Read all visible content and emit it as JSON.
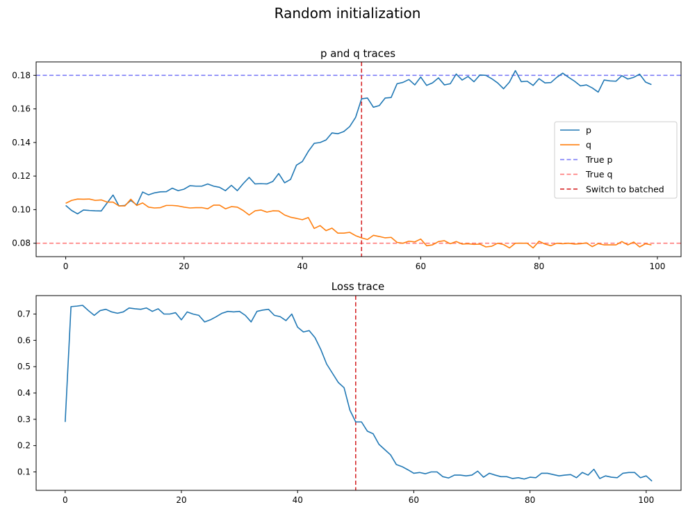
{
  "figure_title": "Random initialization",
  "chart_data": [
    {
      "type": "line",
      "title": "p and q traces",
      "xlabel": "",
      "ylabel": "",
      "xlim": [
        -5,
        104
      ],
      "ylim": [
        0.072,
        0.188
      ],
      "xticks": [
        0,
        20,
        40,
        60,
        80,
        100
      ],
      "yticks": [
        0.08,
        0.1,
        0.12,
        0.14,
        0.16,
        0.18
      ],
      "ytick_labels": [
        "0.08",
        "0.10",
        "0.12",
        "0.14",
        "0.16",
        "0.18"
      ],
      "grid": false,
      "legend_position": "center-right",
      "series": [
        {
          "name": "p",
          "color": "#1f77b4",
          "x_start": 0,
          "values": [
            0.1025,
            0.0995,
            0.0975,
            0.0998,
            0.0995,
            0.0993,
            0.0992,
            0.104,
            0.1087,
            0.1022,
            0.1025,
            0.1055,
            0.1028,
            0.1105,
            0.1088,
            0.11,
            0.1106,
            0.1107,
            0.1128,
            0.1113,
            0.1122,
            0.1143,
            0.114,
            0.114,
            0.1153,
            0.114,
            0.1133,
            0.1113,
            0.1145,
            0.1113,
            0.1155,
            0.1192,
            0.1153,
            0.1155,
            0.1153,
            0.1168,
            0.1215,
            0.116,
            0.118,
            0.1265,
            0.1287,
            0.1347,
            0.1395,
            0.14,
            0.1415,
            0.1457,
            0.1452,
            0.1465,
            0.1495,
            0.155,
            0.166,
            0.1665,
            0.161,
            0.162,
            0.1665,
            0.1668,
            0.175,
            0.1758,
            0.1775,
            0.1743,
            0.179,
            0.174,
            0.1755,
            0.1785,
            0.1743,
            0.175,
            0.1808,
            0.1772,
            0.1793,
            0.1762,
            0.1802,
            0.18,
            0.178,
            0.1755,
            0.172,
            0.176,
            0.1828,
            0.1762,
            0.1765,
            0.174,
            0.178,
            0.1755,
            0.1757,
            0.1788,
            0.1813,
            0.1788,
            0.1765,
            0.1737,
            0.1743,
            0.1725,
            0.17,
            0.1772,
            0.1767,
            0.1765,
            0.1798,
            0.1778,
            0.1788,
            0.1807,
            0.176,
            0.1745
          ]
        },
        {
          "name": "q",
          "color": "#ff7f0e",
          "x_start": 0,
          "values": [
            0.1038,
            0.1055,
            0.1063,
            0.1062,
            0.1063,
            0.1055,
            0.1058,
            0.1045,
            0.1045,
            0.1022,
            0.1022,
            0.1062,
            0.1025,
            0.104,
            0.1015,
            0.101,
            0.1012,
            0.1025,
            0.1025,
            0.1022,
            0.1015,
            0.101,
            0.1012,
            0.1012,
            0.1005,
            0.1027,
            0.1027,
            0.1005,
            0.1018,
            0.1015,
            0.0995,
            0.0968,
            0.0993,
            0.0998,
            0.0985,
            0.0993,
            0.0992,
            0.0968,
            0.0955,
            0.0948,
            0.094,
            0.0953,
            0.0888,
            0.0905,
            0.0875,
            0.089,
            0.086,
            0.086,
            0.0865,
            0.0845,
            0.0832,
            0.0822,
            0.0847,
            0.084,
            0.0832,
            0.0835,
            0.0805,
            0.08,
            0.0812,
            0.0808,
            0.0825,
            0.0785,
            0.079,
            0.081,
            0.0815,
            0.0797,
            0.081,
            0.0795,
            0.0797,
            0.0793,
            0.0795,
            0.0778,
            0.0782,
            0.08,
            0.0792,
            0.0772,
            0.08,
            0.08,
            0.08,
            0.0772,
            0.0812,
            0.0795,
            0.0785,
            0.08,
            0.0797,
            0.08,
            0.0795,
            0.0797,
            0.0802,
            0.078,
            0.0798,
            0.079,
            0.079,
            0.079,
            0.081,
            0.079,
            0.0807,
            0.0778,
            0.0797,
            0.079
          ]
        }
      ],
      "reference_lines": [
        {
          "name": "True p",
          "orientation": "horizontal",
          "value": 0.18,
          "color": "#7b7bf7",
          "style": "dashed"
        },
        {
          "name": "True q",
          "orientation": "horizontal",
          "value": 0.08,
          "color": "#ff7b7b",
          "style": "dashed"
        },
        {
          "name": "Switch to batched",
          "orientation": "vertical",
          "value": 50,
          "color": "#d62728",
          "style": "dashed"
        }
      ]
    },
    {
      "type": "line",
      "title": "Loss trace",
      "xlabel": "",
      "ylabel": "",
      "xlim": [
        -5,
        106
      ],
      "ylim": [
        0.03,
        0.77
      ],
      "xticks": [
        0,
        20,
        40,
        60,
        80,
        100
      ],
      "yticks": [
        0.1,
        0.2,
        0.3,
        0.4,
        0.5,
        0.6,
        0.7
      ],
      "ytick_labels": [
        "0.1",
        "0.2",
        "0.3",
        "0.4",
        "0.5",
        "0.6",
        "0.7"
      ],
      "grid": false,
      "series": [
        {
          "color": "#1f77b4",
          "x_start": 0,
          "values": [
            0.29,
            0.728,
            0.73,
            0.733,
            0.713,
            0.695,
            0.713,
            0.718,
            0.708,
            0.703,
            0.708,
            0.723,
            0.72,
            0.718,
            0.723,
            0.71,
            0.72,
            0.7,
            0.7,
            0.705,
            0.678,
            0.708,
            0.7,
            0.695,
            0.67,
            0.678,
            0.69,
            0.703,
            0.71,
            0.708,
            0.71,
            0.695,
            0.67,
            0.71,
            0.715,
            0.718,
            0.695,
            0.69,
            0.675,
            0.7,
            0.65,
            0.632,
            0.637,
            0.61,
            0.565,
            0.51,
            0.475,
            0.44,
            0.42,
            0.335,
            0.29,
            0.29,
            0.255,
            0.245,
            0.205,
            0.185,
            0.165,
            0.128,
            0.12,
            0.108,
            0.095,
            0.098,
            0.093,
            0.1,
            0.1,
            0.082,
            0.077,
            0.088,
            0.088,
            0.085,
            0.088,
            0.103,
            0.08,
            0.095,
            0.088,
            0.082,
            0.082,
            0.075,
            0.078,
            0.073,
            0.08,
            0.078,
            0.095,
            0.095,
            0.09,
            0.085,
            0.088,
            0.09,
            0.078,
            0.098,
            0.088,
            0.11,
            0.075,
            0.085,
            0.08,
            0.078,
            0.095,
            0.098,
            0.098,
            0.078,
            0.085,
            0.065
          ]
        }
      ],
      "reference_lines": [
        {
          "orientation": "vertical",
          "value": 50,
          "color": "#d62728",
          "style": "dashed"
        }
      ]
    }
  ]
}
